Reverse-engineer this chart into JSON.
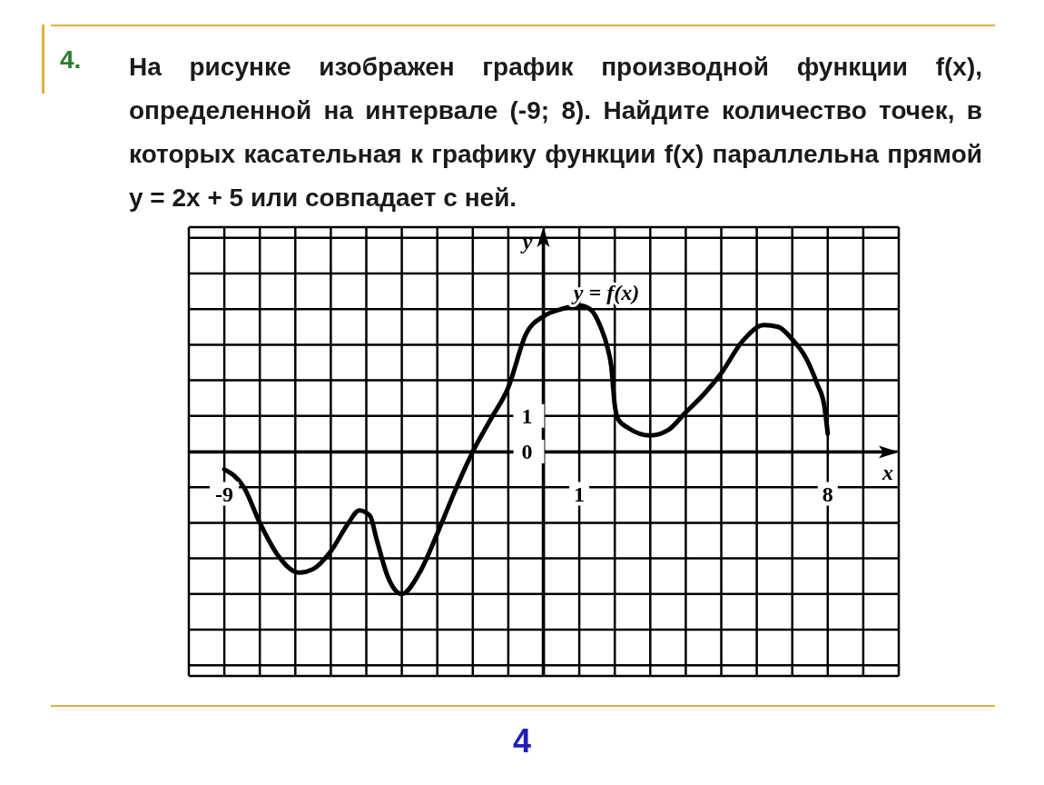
{
  "chart_data": {
    "type": "line",
    "title": "На рисунке изображен график производной функции f(x), определенной на интервале (-9; 8). Найдите количество точек, в которых касательная к графику функции f(x) параллельна прямой y = 2x + 5 или совпадает с ней.",
    "xlabel": "x",
    "ylabel": "y",
    "annotations": [
      "4.",
      "y = f(x)",
      "4"
    ],
    "series": [
      {
        "color": "#000000",
        "x": [
          -9,
          -8.45,
          -8,
          -7.5,
          -6.9,
          -6.5,
          -6,
          -5.5,
          -5.2,
          -4.9,
          -4.7,
          -4.4,
          -4,
          -3.5,
          -3,
          -2.5,
          -2,
          -1.5,
          -1,
          -0.5,
          0,
          0.5,
          1,
          1.3,
          1.6,
          1.8,
          1.9,
          2,
          2.1,
          2.4,
          3,
          3.5,
          4,
          4.5,
          5,
          5.6,
          6.2,
          6.6,
          7,
          7.4,
          7.7,
          7.9,
          8
        ],
        "values": [
          -0.5,
          -1,
          -2,
          -2.9,
          -3.4,
          -3.3,
          -2.8,
          -2,
          -1.65,
          -1.8,
          -2.5,
          -3.5,
          -4,
          -3.4,
          -2.3,
          -1.1,
          0,
          0.9,
          1.8,
          3.3,
          3.8,
          4,
          4.1,
          4,
          3.5,
          2.9,
          2.4,
          1.3,
          0.9,
          0.65,
          0.45,
          0.6,
          1.1,
          1.6,
          2.2,
          3.1,
          3.55,
          3.5,
          3.15,
          2.6,
          1.9,
          1.3,
          0.5
        ]
      }
    ],
    "xlim": [
      -10,
      10
    ],
    "ylim": [
      -6.3,
      6.3
    ],
    "xticks": [
      {
        "value": -10,
        "label": null
      },
      -9,
      {
        "value": -8,
        "label": null
      },
      {
        "value": -7,
        "label": null
      },
      {
        "value": -6,
        "label": null
      },
      {
        "value": -5,
        "label": null
      },
      {
        "value": -4,
        "label": null
      },
      {
        "value": -3,
        "label": null
      },
      {
        "value": -2,
        "label": null
      },
      {
        "value": -1,
        "label": null
      },
      {
        "value": 0,
        "label": null
      },
      1,
      {
        "value": 2,
        "label": null
      },
      {
        "value": 3,
        "label": null
      },
      {
        "value": 4,
        "label": null
      },
      {
        "value": 5,
        "label": null
      },
      {
        "value": 6,
        "label": null
      },
      {
        "value": 7,
        "label": null
      },
      8,
      {
        "value": 9,
        "label": null
      },
      {
        "value": 10,
        "label": null
      }
    ],
    "yticks": [
      {
        "value": -6,
        "label": null
      },
      {
        "value": -5,
        "label": null
      },
      {
        "value": -4,
        "label": null
      },
      {
        "value": -3,
        "label": null
      },
      {
        "value": -2,
        "label": null
      },
      {
        "value": -1,
        "label": null
      },
      0,
      1,
      {
        "value": 2,
        "label": null
      },
      {
        "value": 3,
        "label": null
      },
      {
        "value": 4,
        "label": null
      },
      {
        "value": 5,
        "label": null
      },
      {
        "value": 6,
        "label": null
      }
    ],
    "grid": true,
    "line_style": "solid"
  }
}
